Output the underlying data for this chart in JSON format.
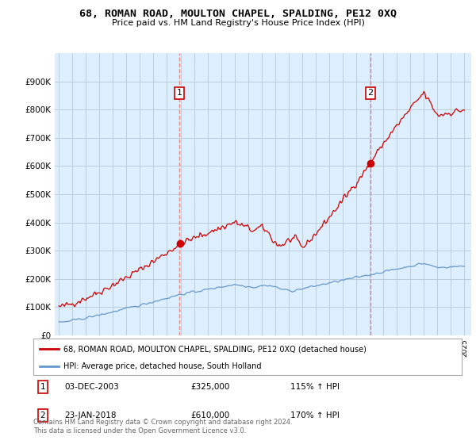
{
  "title": "68, ROMAN ROAD, MOULTON CHAPEL, SPALDING, PE12 0XQ",
  "subtitle": "Price paid vs. HM Land Registry's House Price Index (HPI)",
  "red_label": "68, ROMAN ROAD, MOULTON CHAPEL, SPALDING, PE12 0XQ (detached house)",
  "blue_label": "HPI: Average price, detached house, South Holland",
  "transaction1": {
    "label": "1",
    "date": "03-DEC-2003",
    "price": "£325,000",
    "hpi": "115% ↑ HPI"
  },
  "transaction2": {
    "label": "2",
    "date": "23-JAN-2018",
    "price": "£610,000",
    "hpi": "170% ↑ HPI"
  },
  "footer": "Contains HM Land Registry data © Crown copyright and database right 2024.\nThis data is licensed under the Open Government Licence v3.0.",
  "ylim": [
    0,
    1000000
  ],
  "yticks": [
    0,
    100000,
    200000,
    300000,
    400000,
    500000,
    600000,
    700000,
    800000,
    900000
  ],
  "plot_bg_color": "#ddeeff",
  "fig_bg_color": "#ffffff",
  "grid_color": "#bbccdd",
  "red_color": "#cc0000",
  "blue_color": "#6699cc",
  "vline_color": "#ee8888",
  "t1_year": 2003.92,
  "t2_year": 2018.05,
  "t1_price": 325000,
  "t2_price": 610000
}
